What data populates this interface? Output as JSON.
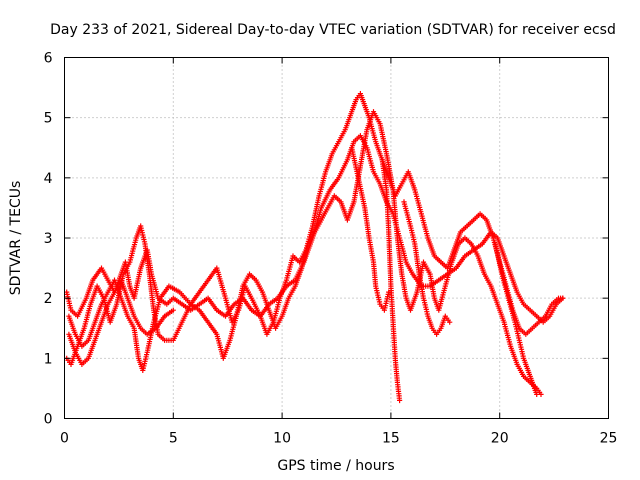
{
  "chart_data": {
    "type": "scatter",
    "title": "Day 233 of 2021, Sidereal Day-to-day VTEC variation (SDTVAR) for receiver ecsd",
    "xlabel": "GPS time / hours",
    "ylabel": "SDTVAR / TECUs",
    "xlim": [
      0,
      25
    ],
    "ylim": [
      0,
      6
    ],
    "xticks": [
      "0",
      "5",
      "10",
      "15",
      "20",
      "25"
    ],
    "yticks": [
      "0",
      "1",
      "2",
      "3",
      "4",
      "5",
      "6"
    ],
    "grid": true,
    "marker": "+",
    "series": [
      {
        "name": "SDTVAR",
        "color": "#ff0000",
        "tracks": [
          [
            [
              0.1,
              2.1
            ],
            [
              0.3,
              1.8
            ],
            [
              0.6,
              1.7
            ],
            [
              1.0,
              2.0
            ],
            [
              1.3,
              2.3
            ],
            [
              1.7,
              2.5
            ],
            [
              2.0,
              2.3
            ],
            [
              2.3,
              2.1
            ],
            [
              2.6,
              2.4
            ],
            [
              2.8,
              2.6
            ],
            [
              3.0,
              2.2
            ],
            [
              3.2,
              2.0
            ],
            [
              3.5,
              2.5
            ],
            [
              3.8,
              2.8
            ],
            [
              4.0,
              2.4
            ],
            [
              4.3,
              2.0
            ],
            [
              4.7,
              1.9
            ],
            [
              5.0,
              2.0
            ],
            [
              5.4,
              1.9
            ],
            [
              5.8,
              1.8
            ],
            [
              6.2,
              1.9
            ],
            [
              6.6,
              2.0
            ],
            [
              7.0,
              1.8
            ],
            [
              7.4,
              1.7
            ],
            [
              7.8,
              1.9
            ],
            [
              8.2,
              2.0
            ],
            [
              8.6,
              1.8
            ],
            [
              9.0,
              1.7
            ],
            [
              9.4,
              1.9
            ],
            [
              9.8,
              2.0
            ],
            [
              10.2,
              2.2
            ],
            [
              10.6,
              2.3
            ],
            [
              11.0,
              2.6
            ],
            [
              11.4,
              3.0
            ],
            [
              11.8,
              3.5
            ],
            [
              12.2,
              3.8
            ],
            [
              12.6,
              4.0
            ],
            [
              13.0,
              4.3
            ],
            [
              13.3,
              4.6
            ],
            [
              13.6,
              4.7
            ],
            [
              13.9,
              4.5
            ],
            [
              14.2,
              4.1
            ],
            [
              14.5,
              3.9
            ],
            [
              14.8,
              3.6
            ],
            [
              15.1,
              3.4
            ],
            [
              15.4,
              3.0
            ],
            [
              15.7,
              2.6
            ],
            [
              16.0,
              2.4
            ],
            [
              16.4,
              2.2
            ],
            [
              16.8,
              2.2
            ],
            [
              17.2,
              2.3
            ],
            [
              17.6,
              2.4
            ],
            [
              18.0,
              2.5
            ],
            [
              18.4,
              2.7
            ],
            [
              18.8,
              2.8
            ],
            [
              19.2,
              2.9
            ],
            [
              19.6,
              3.1
            ],
            [
              19.9,
              3.0
            ],
            [
              20.2,
              2.7
            ],
            [
              20.5,
              2.4
            ],
            [
              20.8,
              2.1
            ],
            [
              21.1,
              1.9
            ],
            [
              21.4,
              1.8
            ],
            [
              21.7,
              1.7
            ],
            [
              22.0,
              1.6
            ],
            [
              22.3,
              1.7
            ],
            [
              22.6,
              1.9
            ],
            [
              22.9,
              2.0
            ]
          ],
          [
            [
              0.1,
              1.0
            ],
            [
              0.3,
              0.9
            ],
            [
              0.6,
              1.2
            ],
            [
              0.9,
              1.5
            ],
            [
              1.2,
              1.9
            ],
            [
              1.5,
              2.2
            ],
            [
              1.8,
              2.0
            ],
            [
              2.1,
              1.6
            ],
            [
              2.4,
              1.9
            ],
            [
              2.7,
              2.4
            ],
            [
              3.0,
              2.6
            ],
            [
              3.3,
              3.0
            ],
            [
              3.5,
              3.2
            ],
            [
              3.7,
              2.9
            ],
            [
              3.9,
              2.4
            ],
            [
              4.1,
              1.8
            ],
            [
              4.3,
              1.4
            ],
            [
              4.6,
              1.3
            ],
            [
              5.0,
              1.3
            ],
            [
              5.4,
              1.6
            ],
            [
              5.8,
              1.9
            ],
            [
              6.2,
              2.1
            ],
            [
              6.6,
              2.3
            ],
            [
              7.0,
              2.5
            ],
            [
              7.4,
              2.0
            ],
            [
              7.7,
              1.6
            ],
            [
              8.0,
              1.8
            ],
            [
              8.3,
              2.2
            ],
            [
              8.6,
              2.0
            ],
            [
              9.0,
              1.7
            ],
            [
              9.3,
              1.4
            ],
            [
              9.6,
              1.6
            ],
            [
              9.9,
              2.0
            ],
            [
              10.2,
              2.3
            ],
            [
              10.5,
              2.7
            ],
            [
              10.8,
              2.6
            ],
            [
              11.1,
              2.8
            ],
            [
              11.4,
              3.2
            ],
            [
              11.7,
              3.7
            ],
            [
              12.0,
              4.1
            ],
            [
              12.3,
              4.4
            ],
            [
              12.6,
              4.6
            ],
            [
              12.9,
              4.8
            ],
            [
              13.2,
              5.1
            ],
            [
              13.4,
              5.3
            ],
            [
              13.6,
              5.4
            ],
            [
              13.8,
              5.2
            ],
            [
              14.0,
              5.0
            ],
            [
              14.3,
              4.6
            ],
            [
              14.6,
              4.3
            ],
            [
              14.9,
              4.0
            ],
            [
              15.2,
              3.7
            ],
            [
              15.5,
              3.9
            ],
            [
              15.8,
              4.1
            ],
            [
              16.1,
              3.8
            ],
            [
              16.4,
              3.4
            ],
            [
              16.7,
              3.0
            ],
            [
              17.0,
              2.7
            ],
            [
              17.3,
              2.6
            ],
            [
              17.6,
              2.5
            ],
            [
              17.9,
              2.8
            ],
            [
              18.2,
              3.1
            ],
            [
              18.5,
              3.2
            ],
            [
              18.8,
              3.3
            ],
            [
              19.1,
              3.4
            ],
            [
              19.4,
              3.3
            ],
            [
              19.7,
              3.0
            ],
            [
              20.0,
              2.6
            ],
            [
              20.3,
              2.2
            ],
            [
              20.6,
              1.8
            ],
            [
              20.9,
              1.5
            ],
            [
              21.2,
              1.4
            ],
            [
              21.5,
              1.5
            ],
            [
              21.8,
              1.6
            ],
            [
              22.1,
              1.7
            ],
            [
              22.4,
              1.9
            ],
            [
              22.7,
              2.0
            ],
            [
              22.9,
              2.0
            ]
          ],
          [
            [
              0.2,
              1.7
            ],
            [
              0.5,
              1.4
            ],
            [
              0.8,
              1.2
            ],
            [
              1.1,
              1.3
            ],
            [
              1.4,
              1.6
            ],
            [
              1.7,
              1.9
            ],
            [
              2.0,
              2.1
            ],
            [
              2.3,
              2.3
            ],
            [
              2.6,
              2.0
            ],
            [
              2.9,
              1.7
            ],
            [
              3.2,
              1.5
            ],
            [
              3.4,
              1.0
            ],
            [
              3.6,
              0.8
            ],
            [
              3.8,
              1.1
            ],
            [
              4.1,
              1.6
            ],
            [
              4.4,
              2.0
            ],
            [
              4.8,
              2.2
            ],
            [
              5.3,
              2.1
            ],
            [
              5.8,
              1.9
            ],
            [
              6.2,
              1.8
            ],
            [
              6.6,
              1.6
            ],
            [
              7.0,
              1.4
            ],
            [
              7.3,
              1.0
            ],
            [
              7.6,
              1.3
            ],
            [
              7.9,
              1.7
            ],
            [
              8.2,
              2.2
            ],
            [
              8.5,
              2.4
            ],
            [
              8.8,
              2.3
            ],
            [
              9.1,
              2.1
            ],
            [
              9.4,
              1.8
            ],
            [
              9.7,
              1.5
            ],
            [
              10.0,
              1.7
            ],
            [
              10.3,
              2.0
            ],
            [
              10.6,
              2.2
            ],
            [
              10.9,
              2.5
            ],
            [
              11.2,
              2.9
            ],
            [
              11.5,
              3.1
            ],
            [
              11.8,
              3.3
            ],
            [
              12.1,
              3.5
            ],
            [
              12.4,
              3.7
            ],
            [
              12.7,
              3.6
            ],
            [
              13.0,
              3.3
            ],
            [
              13.3,
              3.6
            ],
            [
              13.6,
              4.2
            ],
            [
              13.9,
              4.8
            ],
            [
              14.2,
              5.1
            ],
            [
              14.5,
              4.9
            ],
            [
              14.8,
              4.4
            ],
            [
              15.1,
              3.8
            ],
            [
              15.3,
              3.0
            ],
            [
              15.5,
              2.4
            ],
            [
              15.7,
              2.0
            ],
            [
              15.9,
              1.8
            ],
            [
              16.2,
              2.1
            ],
            [
              16.5,
              2.6
            ],
            [
              16.8,
              2.4
            ],
            [
              17.0,
              2.0
            ],
            [
              17.2,
              1.8
            ],
            [
              17.5,
              2.2
            ],
            [
              17.8,
              2.6
            ],
            [
              18.1,
              2.9
            ],
            [
              18.4,
              3.0
            ],
            [
              18.7,
              2.9
            ],
            [
              19.0,
              2.7
            ],
            [
              19.3,
              2.4
            ],
            [
              19.6,
              2.2
            ],
            [
              19.9,
              1.9
            ],
            [
              20.2,
              1.6
            ],
            [
              20.5,
              1.2
            ],
            [
              20.8,
              0.9
            ],
            [
              21.1,
              0.7
            ],
            [
              21.4,
              0.6
            ],
            [
              21.7,
              0.5
            ],
            [
              21.9,
              0.4
            ]
          ],
          [
            [
              14.6,
              4.3
            ],
            [
              14.8,
              3.8
            ],
            [
              14.9,
              3.1
            ],
            [
              15.0,
              2.2
            ],
            [
              15.1,
              1.6
            ],
            [
              15.2,
              1.0
            ],
            [
              15.3,
              0.6
            ],
            [
              15.4,
              0.3
            ]
          ],
          [
            [
              13.2,
              4.5
            ],
            [
              13.5,
              4.0
            ],
            [
              13.8,
              3.5
            ],
            [
              14.0,
              3.0
            ],
            [
              14.2,
              2.6
            ],
            [
              14.3,
              2.2
            ],
            [
              14.5,
              1.9
            ],
            [
              14.7,
              1.8
            ],
            [
              14.9,
              2.1
            ]
          ],
          [
            [
              15.6,
              3.6
            ],
            [
              15.9,
              3.2
            ],
            [
              16.1,
              2.9
            ],
            [
              16.3,
              2.4
            ],
            [
              16.5,
              2.0
            ],
            [
              16.7,
              1.7
            ],
            [
              16.9,
              1.5
            ],
            [
              17.1,
              1.4
            ],
            [
              17.3,
              1.5
            ],
            [
              17.5,
              1.7
            ],
            [
              17.7,
              1.6
            ]
          ],
          [
            [
              19.8,
              2.9
            ],
            [
              20.1,
              2.4
            ],
            [
              20.4,
              2.0
            ],
            [
              20.7,
              1.6
            ],
            [
              20.9,
              1.3
            ],
            [
              21.1,
              1.0
            ],
            [
              21.3,
              0.8
            ],
            [
              21.5,
              0.6
            ],
            [
              21.7,
              0.4
            ]
          ],
          [
            [
              0.2,
              1.4
            ],
            [
              0.5,
              1.1
            ],
            [
              0.8,
              0.9
            ],
            [
              1.1,
              1.0
            ],
            [
              1.4,
              1.3
            ],
            [
              1.7,
              1.6
            ],
            [
              2.0,
              1.9
            ],
            [
              2.3,
              2.1
            ],
            [
              2.6,
              2.3
            ],
            [
              2.9,
              2.0
            ],
            [
              3.2,
              1.7
            ],
            [
              3.5,
              1.5
            ],
            [
              3.8,
              1.4
            ],
            [
              4.2,
              1.5
            ],
            [
              4.6,
              1.7
            ],
            [
              5.0,
              1.8
            ]
          ]
        ]
      }
    ]
  }
}
